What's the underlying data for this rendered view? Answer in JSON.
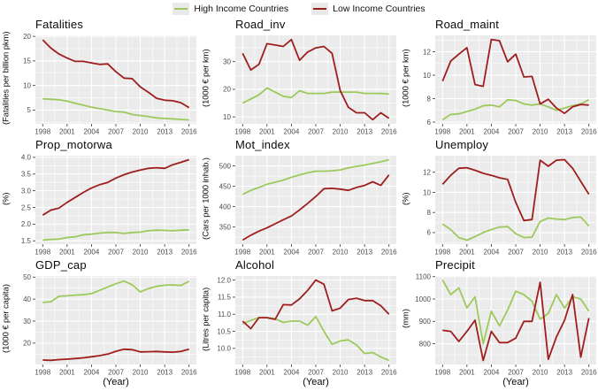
{
  "legend": {
    "items": [
      {
        "label": "High Income Countries",
        "series": "high"
      },
      {
        "label": "Low Income Countries",
        "series": "low"
      }
    ]
  },
  "colors": {
    "high": "#9DC95C",
    "low": "#9E1E1E",
    "panel_bg": "#EBEBEB",
    "grid": "#FFFFFF",
    "tick_text": "#4D4D4D",
    "tick_mark": "#333333"
  },
  "x": {
    "years": [
      1998,
      1999,
      2000,
      2001,
      2002,
      2003,
      2004,
      2005,
      2006,
      2007,
      2008,
      2009,
      2010,
      2011,
      2012,
      2013,
      2014,
      2015,
      2016
    ],
    "ticks": [
      1998,
      2001,
      2004,
      2007,
      2010,
      2013,
      2016
    ],
    "tick_labels": [
      "1998",
      "2001",
      "2004",
      "2007",
      "2010",
      "2013",
      "2016"
    ],
    "label": "(Year)"
  },
  "chart_data": [
    {
      "type": "line",
      "title": "Fatalities",
      "ylabel": "(Fatalities per billion pkm)",
      "ylim": [
        2.2,
        20.2
      ],
      "yticks": [
        5,
        10,
        15,
        20
      ],
      "ytick_labels": [
        "5",
        "10",
        "15",
        "20"
      ],
      "series": [
        {
          "name": "High Income Countries",
          "key": "high",
          "values": [
            7.3,
            7.2,
            7.1,
            6.8,
            6.4,
            6.0,
            5.6,
            5.3,
            5.0,
            4.7,
            4.6,
            4.1,
            3.9,
            3.7,
            3.4,
            3.3,
            3.2,
            3.1,
            3.0
          ]
        },
        {
          "name": "Low Income Countries",
          "key": "low",
          "values": [
            19.3,
            17.6,
            16.4,
            15.6,
            14.9,
            14.9,
            14.6,
            14.3,
            14.4,
            12.8,
            11.5,
            11.4,
            9.7,
            8.6,
            7.4,
            7.0,
            6.9,
            6.5,
            5.5
          ]
        }
      ]
    },
    {
      "type": "line",
      "title": "Road_inv",
      "ylabel": "(1000 € per km)",
      "ylim": [
        7.5,
        39.5
      ],
      "yticks": [
        10,
        20,
        30
      ],
      "ytick_labels": [
        "10",
        "20",
        "30"
      ],
      "series": [
        {
          "name": "High Income Countries",
          "key": "high",
          "values": [
            15,
            16.5,
            18,
            20.5,
            19,
            17.5,
            17,
            19.5,
            18.5,
            18.5,
            18.5,
            19,
            19,
            19,
            19,
            18.5,
            18.5,
            18.5,
            18.3
          ]
        },
        {
          "name": "Low Income Countries",
          "key": "low",
          "values": [
            33,
            27,
            29,
            36.5,
            36,
            35.5,
            38,
            30.5,
            33.5,
            35,
            35.5,
            33,
            19.5,
            13.5,
            11.5,
            11.5,
            9,
            11.5,
            9.5
          ]
        }
      ]
    },
    {
      "type": "line",
      "title": "Road_maint",
      "ylabel": "(1000 € per km)",
      "ylim": [
        5.85,
        13.4
      ],
      "yticks": [
        6,
        8,
        10,
        12
      ],
      "ytick_labels": [
        "6",
        "8",
        "10",
        "12"
      ],
      "series": [
        {
          "name": "High Income Countries",
          "key": "high",
          "values": [
            6.2,
            6.65,
            6.7,
            6.9,
            7.1,
            7.4,
            7.45,
            7.3,
            7.9,
            7.85,
            7.55,
            7.45,
            7.55,
            7.3,
            7.0,
            7.2,
            7.4,
            7.55,
            7.9
          ]
        },
        {
          "name": "Low Income Countries",
          "key": "low",
          "values": [
            9.5,
            11.2,
            11.8,
            12.35,
            9.2,
            9.05,
            13.05,
            12.95,
            11.15,
            11.8,
            9.85,
            9.9,
            7.55,
            7.95,
            7.2,
            6.75,
            7.3,
            7.5,
            7.45
          ]
        }
      ]
    },
    {
      "type": "line",
      "title": "Prop_motorwa",
      "ylabel": "(%)",
      "ylim": [
        1.4,
        4.05
      ],
      "yticks": [
        1.5,
        2.0,
        2.5,
        3.0,
        3.5,
        4.0
      ],
      "ytick_labels": [
        "1.5",
        "2.0",
        "2.5",
        "3.0",
        "3.5",
        "4.0"
      ],
      "series": [
        {
          "name": "High Income Countries",
          "key": "high",
          "values": [
            1.52,
            1.54,
            1.55,
            1.6,
            1.62,
            1.68,
            1.7,
            1.73,
            1.75,
            1.75,
            1.72,
            1.75,
            1.76,
            1.8,
            1.82,
            1.81,
            1.8,
            1.82,
            1.83
          ]
        },
        {
          "name": "Low Income Countries",
          "key": "low",
          "values": [
            2.27,
            2.42,
            2.48,
            2.65,
            2.8,
            2.95,
            3.08,
            3.18,
            3.25,
            3.38,
            3.48,
            3.56,
            3.62,
            3.67,
            3.69,
            3.67,
            3.78,
            3.85,
            3.93
          ]
        }
      ]
    },
    {
      "type": "line",
      "title": "Mot_index",
      "ylabel": "(Cars per 1000 inhab.)",
      "ylim": [
        308,
        525
      ],
      "yticks": [
        350,
        400,
        450,
        500
      ],
      "ytick_labels": [
        "350",
        "400",
        "450",
        "500"
      ],
      "series": [
        {
          "name": "High Income Countries",
          "key": "high",
          "values": [
            430,
            440,
            447,
            455,
            460,
            465,
            472,
            478,
            483,
            487,
            487,
            488,
            490,
            495,
            499,
            502,
            506,
            510,
            515
          ]
        },
        {
          "name": "Low Income Countries",
          "key": "low",
          "values": [
            318,
            330,
            340,
            348,
            358,
            368,
            377,
            392,
            408,
            425,
            444,
            445,
            443,
            440,
            447,
            452,
            461,
            452,
            478
          ]
        }
      ]
    },
    {
      "type": "line",
      "title": "Unemploy",
      "ylabel": "(%)",
      "ylim": [
        4.85,
        13.65
      ],
      "yticks": [
        6,
        8,
        10,
        12
      ],
      "ytick_labels": [
        "6",
        "8",
        "10",
        "12"
      ],
      "series": [
        {
          "name": "High Income Countries",
          "key": "high",
          "values": [
            6.85,
            6.3,
            5.5,
            5.25,
            5.6,
            6.0,
            6.3,
            6.55,
            6.6,
            5.9,
            5.5,
            5.55,
            7.1,
            7.45,
            7.35,
            7.3,
            7.5,
            7.55,
            6.65
          ]
        },
        {
          "name": "Low Income Countries",
          "key": "low",
          "values": [
            10.8,
            11.7,
            12.4,
            12.45,
            12.2,
            11.9,
            11.7,
            11.45,
            11.3,
            9.0,
            7.2,
            7.3,
            13.2,
            12.6,
            13.2,
            13.25,
            12.4,
            11.1,
            9.8
          ]
        }
      ]
    },
    {
      "type": "line",
      "title": "GDP_cap",
      "ylabel": "(1000 € per capita)",
      "ylim": [
        10.3,
        50.5
      ],
      "yticks": [
        20,
        30,
        40,
        50
      ],
      "ytick_labels": [
        "20",
        "30",
        "40",
        "50"
      ],
      "series": [
        {
          "name": "High Income Countries",
          "key": "high",
          "values": [
            38.5,
            38.8,
            41.3,
            41.5,
            41.8,
            42.0,
            42.5,
            44.0,
            45.5,
            47.0,
            48.2,
            46.5,
            43.3,
            44.8,
            45.8,
            46.3,
            46.5,
            46.2,
            48.1
          ]
        },
        {
          "name": "Low Income Countries",
          "key": "low",
          "values": [
            12.3,
            12.2,
            12.5,
            12.7,
            13.0,
            13.3,
            13.8,
            14.3,
            15.0,
            16.3,
            17.2,
            17.0,
            16.0,
            16.1,
            16.2,
            16.0,
            15.9,
            16.2,
            17.2
          ]
        }
      ]
    },
    {
      "type": "line",
      "title": "Alcohol",
      "ylabel": "(Litres per capita)",
      "ylim": [
        9.53,
        12.12
      ],
      "yticks": [
        10.0,
        10.5,
        11.0,
        11.5,
        12.0
      ],
      "ytick_labels": [
        "10.0",
        "10.5",
        "11.0",
        "11.5",
        "12.0"
      ],
      "series": [
        {
          "name": "High Income Countries",
          "key": "high",
          "values": [
            10.72,
            10.82,
            10.9,
            10.9,
            10.87,
            10.76,
            10.8,
            10.8,
            10.68,
            10.93,
            10.5,
            10.12,
            10.22,
            10.25,
            10.1,
            9.85,
            9.88,
            9.75,
            9.65
          ]
        },
        {
          "name": "Low Income Countries",
          "key": "low",
          "values": [
            10.8,
            10.58,
            10.9,
            10.9,
            10.85,
            11.28,
            11.27,
            11.45,
            11.7,
            12.0,
            11.88,
            11.1,
            11.18,
            11.43,
            11.47,
            11.4,
            11.4,
            11.25,
            11.0
          ]
        }
      ]
    },
    {
      "type": "line",
      "title": "Precipit",
      "ylabel": "(mm)",
      "ylim": [
        707,
        1103
      ],
      "yticks": [
        800,
        900,
        1000,
        1100
      ],
      "ytick_labels": [
        "800",
        "900",
        "1000",
        "1100"
      ],
      "series": [
        {
          "name": "High Income Countries",
          "key": "high",
          "values": [
            1085,
            1020,
            1050,
            960,
            1010,
            800,
            945,
            880,
            950,
            1035,
            1020,
            990,
            910,
            935,
            1020,
            960,
            1010,
            1000,
            945
          ]
        },
        {
          "name": "Low Income Countries",
          "key": "low",
          "values": [
            860,
            855,
            810,
            855,
            905,
            725,
            855,
            805,
            805,
            825,
            900,
            900,
            1075,
            730,
            830,
            905,
            1020,
            740,
            915
          ]
        }
      ]
    }
  ]
}
